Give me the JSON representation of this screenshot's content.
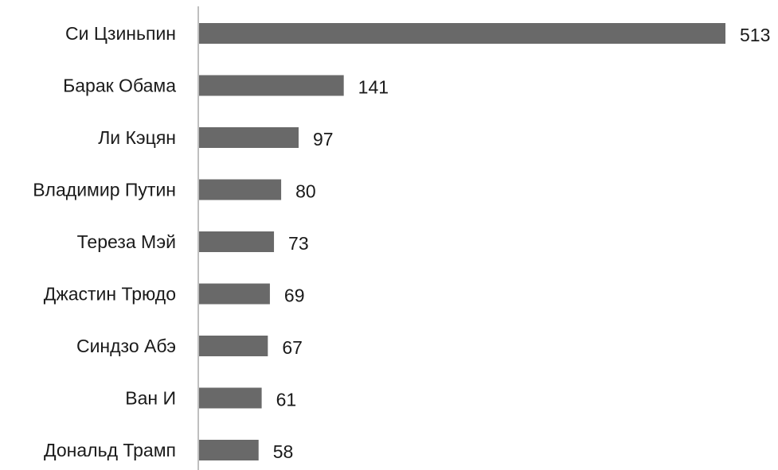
{
  "chart_data": {
    "type": "bar",
    "orientation": "horizontal",
    "title": "",
    "xlabel": "",
    "ylabel": "",
    "grid": false,
    "legend": "none",
    "bar_color": "#696969",
    "axis_color": "#7f7f7f",
    "text_color": "#1a1a1a",
    "xlim": [
      0,
      513
    ],
    "categories": [
      "Си Цзиньпин",
      "Барак Обама",
      "Ли Кэцян",
      "Владимир Путин",
      "Тереза Мэй",
      "Джастин Трюдо",
      "Синдзо Абэ",
      "Ван И",
      "Дональд Трамп"
    ],
    "values": [
      513,
      141,
      97,
      80,
      73,
      69,
      67,
      61,
      58
    ],
    "data_labels": [
      "513",
      "141",
      "97",
      "80",
      "73",
      "69",
      "67",
      "61",
      "58"
    ]
  }
}
